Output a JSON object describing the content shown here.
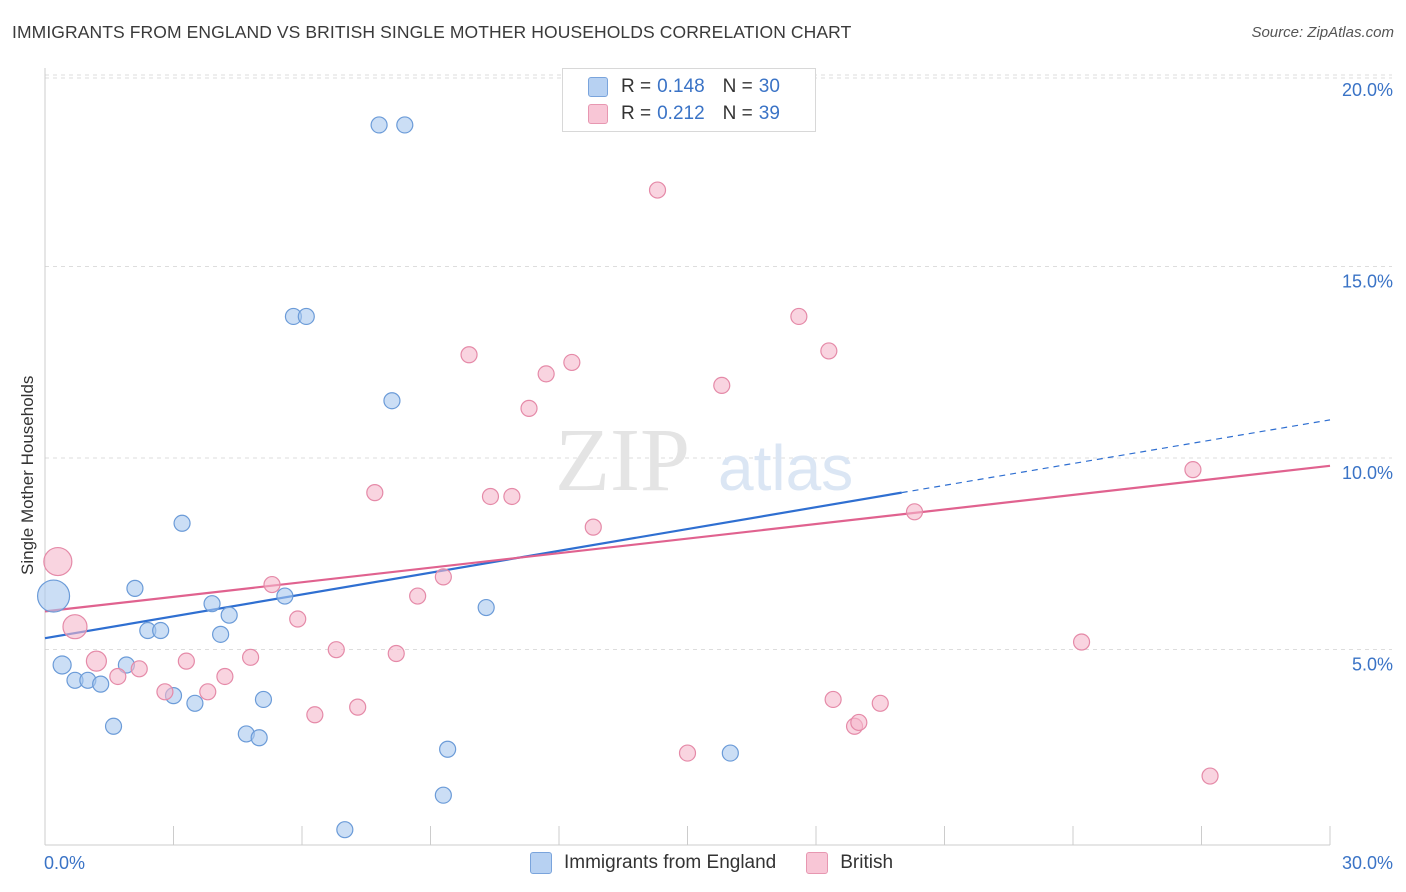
{
  "title": "IMMIGRANTS FROM ENGLAND VS BRITISH SINGLE MOTHER HOUSEHOLDS CORRELATION CHART",
  "source": "Source: ZipAtlas.com",
  "watermark": {
    "zip": "ZIP",
    "atlas": "atlas"
  },
  "legend_top": [
    {
      "r_label": "R =",
      "r_value": "0.148",
      "n_label": "N =",
      "n_value": "30"
    },
    {
      "r_label": "R =",
      "r_value": "0.212",
      "n_label": "N =",
      "n_value": "39"
    }
  ],
  "legend_bottom": [
    {
      "label": "Immigrants from England"
    },
    {
      "label": "British"
    }
  ],
  "colors": {
    "blue_fill": "#a9c8ef",
    "blue_stroke": "#6b9bd8",
    "blue_line": "#2f6fd1",
    "pink_fill": "#f5b8cb",
    "pink_stroke": "#e58aa8",
    "pink_line": "#e0628f",
    "tick_text": "#3a73c6",
    "grid": "#dddddd"
  },
  "chart_data": {
    "type": "scatter",
    "title": "IMMIGRANTS FROM ENGLAND VS BRITISH SINGLE MOTHER HOUSEHOLDS CORRELATION CHART",
    "xlabel": "",
    "ylabel": "Single Mother Households",
    "xlim": [
      0,
      30
    ],
    "ylim": [
      0,
      20
    ],
    "x_tick_labels": [
      "0.0%",
      "30.0%"
    ],
    "y_ticks": [
      5,
      10,
      15,
      20
    ],
    "y_tick_labels": [
      "5.0%",
      "10.0%",
      "15.0%",
      "20.0%"
    ],
    "grid": true,
    "legend_placement": "top-center",
    "series": [
      {
        "name": "Immigrants from England",
        "points": [
          {
            "x": 0.2,
            "y": 6.5,
            "size": 16
          },
          {
            "x": 0.4,
            "y": 4.7,
            "size": 9
          },
          {
            "x": 0.7,
            "y": 4.3,
            "size": 8
          },
          {
            "x": 1.0,
            "y": 4.3,
            "size": 8
          },
          {
            "x": 1.3,
            "y": 4.2,
            "size": 8
          },
          {
            "x": 1.6,
            "y": 3.1,
            "size": 8
          },
          {
            "x": 1.9,
            "y": 4.7,
            "size": 8
          },
          {
            "x": 2.1,
            "y": 6.7,
            "size": 8
          },
          {
            "x": 2.4,
            "y": 5.6,
            "size": 8
          },
          {
            "x": 2.7,
            "y": 5.6,
            "size": 8
          },
          {
            "x": 3.0,
            "y": 3.9,
            "size": 8
          },
          {
            "x": 3.2,
            "y": 8.4,
            "size": 8
          },
          {
            "x": 3.5,
            "y": 3.7,
            "size": 8
          },
          {
            "x": 3.9,
            "y": 6.3,
            "size": 8
          },
          {
            "x": 4.1,
            "y": 5.5,
            "size": 8
          },
          {
            "x": 4.3,
            "y": 6.0,
            "size": 8
          },
          {
            "x": 4.7,
            "y": 2.9,
            "size": 8
          },
          {
            "x": 5.0,
            "y": 2.8,
            "size": 8
          },
          {
            "x": 5.1,
            "y": 3.8,
            "size": 8
          },
          {
            "x": 5.6,
            "y": 6.5,
            "size": 8
          },
          {
            "x": 5.8,
            "y": 13.8,
            "size": 8
          },
          {
            "x": 6.1,
            "y": 13.8,
            "size": 8
          },
          {
            "x": 7.0,
            "y": 0.4,
            "size": 8
          },
          {
            "x": 7.8,
            "y": 18.8,
            "size": 8
          },
          {
            "x": 8.1,
            "y": 11.6,
            "size": 8
          },
          {
            "x": 8.4,
            "y": 18.8,
            "size": 8
          },
          {
            "x": 9.3,
            "y": 1.3,
            "size": 8
          },
          {
            "x": 9.4,
            "y": 2.5,
            "size": 8
          },
          {
            "x": 10.3,
            "y": 6.2,
            "size": 8
          },
          {
            "x": 16.0,
            "y": 2.4,
            "size": 8
          }
        ]
      },
      {
        "name": "British",
        "points": [
          {
            "x": 0.3,
            "y": 7.4,
            "size": 14
          },
          {
            "x": 0.7,
            "y": 5.7,
            "size": 12
          },
          {
            "x": 1.2,
            "y": 4.8,
            "size": 10
          },
          {
            "x": 1.7,
            "y": 4.4,
            "size": 8
          },
          {
            "x": 2.2,
            "y": 4.6,
            "size": 8
          },
          {
            "x": 2.8,
            "y": 4.0,
            "size": 8
          },
          {
            "x": 3.3,
            "y": 4.8,
            "size": 8
          },
          {
            "x": 3.8,
            "y": 4.0,
            "size": 8
          },
          {
            "x": 4.2,
            "y": 4.4,
            "size": 8
          },
          {
            "x": 4.8,
            "y": 4.9,
            "size": 8
          },
          {
            "x": 5.3,
            "y": 6.8,
            "size": 8
          },
          {
            "x": 5.9,
            "y": 5.9,
            "size": 8
          },
          {
            "x": 6.3,
            "y": 3.4,
            "size": 8
          },
          {
            "x": 6.8,
            "y": 5.1,
            "size": 8
          },
          {
            "x": 7.3,
            "y": 3.6,
            "size": 8
          },
          {
            "x": 7.7,
            "y": 9.2,
            "size": 8
          },
          {
            "x": 8.2,
            "y": 5.0,
            "size": 8
          },
          {
            "x": 8.7,
            "y": 6.5,
            "size": 8
          },
          {
            "x": 9.3,
            "y": 7.0,
            "size": 8
          },
          {
            "x": 9.9,
            "y": 12.8,
            "size": 8
          },
          {
            "x": 10.4,
            "y": 9.1,
            "size": 8
          },
          {
            "x": 10.9,
            "y": 9.1,
            "size": 8
          },
          {
            "x": 11.3,
            "y": 11.4,
            "size": 8
          },
          {
            "x": 11.7,
            "y": 12.3,
            "size": 8
          },
          {
            "x": 12.3,
            "y": 12.6,
            "size": 8
          },
          {
            "x": 12.8,
            "y": 8.3,
            "size": 8
          },
          {
            "x": 14.3,
            "y": 17.1,
            "size": 8
          },
          {
            "x": 15.0,
            "y": 2.4,
            "size": 8
          },
          {
            "x": 15.8,
            "y": 12.0,
            "size": 8
          },
          {
            "x": 17.6,
            "y": 13.8,
            "size": 8
          },
          {
            "x": 18.4,
            "y": 3.8,
            "size": 8
          },
          {
            "x": 18.3,
            "y": 12.9,
            "size": 8
          },
          {
            "x": 18.9,
            "y": 3.1,
            "size": 8
          },
          {
            "x": 19.5,
            "y": 3.7,
            "size": 8
          },
          {
            "x": 20.3,
            "y": 8.7,
            "size": 8
          },
          {
            "x": 24.2,
            "y": 5.3,
            "size": 8
          },
          {
            "x": 26.8,
            "y": 9.8,
            "size": 8
          },
          {
            "x": 27.2,
            "y": 1.8,
            "size": 8
          },
          {
            "x": 19.0,
            "y": 3.2,
            "size": 8
          }
        ]
      }
    ],
    "trend_lines": [
      {
        "series": "Immigrants from England",
        "x0": 0,
        "y0": 5.4,
        "x1": 20.0,
        "y1": 9.2,
        "dashed_to_x": 30,
        "dashed_to_y": 11.1
      },
      {
        "series": "British",
        "x0": 0,
        "y0": 6.1,
        "x1": 30,
        "y1": 9.9
      }
    ]
  }
}
